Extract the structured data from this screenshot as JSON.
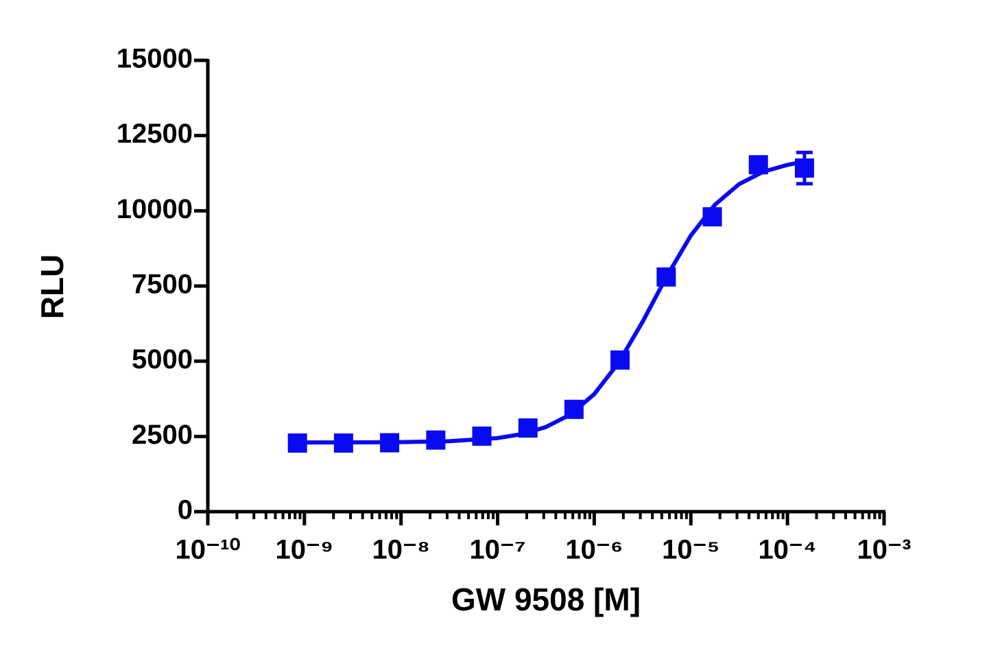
{
  "chart_data": {
    "type": "scatter",
    "x_label": "GW 9508 [M]",
    "y_label": "RLU",
    "xscale": "log",
    "xlim": [
      1e-10,
      0.001
    ],
    "ylim": [
      0,
      15000
    ],
    "xticks": [
      {
        "value": 1e-10,
        "label": "10⁻¹⁰"
      },
      {
        "value": 1e-09,
        "label": "10⁻⁹"
      },
      {
        "value": 1e-08,
        "label": "10⁻⁸"
      },
      {
        "value": 1e-07,
        "label": "10⁻⁷"
      },
      {
        "value": 1e-06,
        "label": "10⁻⁶"
      },
      {
        "value": 1e-05,
        "label": "10⁻⁵"
      },
      {
        "value": 0.0001,
        "label": "10⁻⁴"
      },
      {
        "value": 0.001,
        "label": "10⁻³"
      }
    ],
    "xminorticks": [
      2e-10,
      3e-10,
      4e-10,
      5e-10,
      6e-10,
      7e-10,
      8e-10,
      9e-10,
      2e-09,
      3e-09,
      4e-09,
      5e-09,
      6e-09,
      7e-09,
      8e-09,
      9e-09,
      2e-08,
      3e-08,
      4e-08,
      5e-08,
      6e-08,
      7e-08,
      8e-08,
      9e-08,
      2e-07,
      3e-07,
      4e-07,
      5e-07,
      6e-07,
      7e-07,
      8e-07,
      9e-07,
      2e-06,
      3e-06,
      4e-06,
      5e-06,
      6e-06,
      7e-06,
      8e-06,
      9e-06,
      2e-05,
      3e-05,
      4e-05,
      5e-05,
      6e-05,
      7e-05,
      8e-05,
      9e-05,
      0.0002,
      0.0003,
      0.0004,
      0.0005,
      0.0006,
      0.0007,
      0.0008,
      0.0009
    ],
    "yticks": [
      0,
      2500,
      5000,
      7500,
      10000,
      12500,
      15000
    ],
    "series": [
      {
        "style": "markers",
        "color": "#0a0af0",
        "x": [
          8.47e-10,
          2.54e-09,
          7.62e-09,
          2.29e-08,
          6.86e-08,
          2.06e-07,
          6.17e-07,
          1.85e-06,
          5.56e-06,
          1.667e-05,
          5e-05,
          0.00015
        ],
        "values": [
          2280,
          2280,
          2290,
          2380,
          2510,
          2780,
          3400,
          5040,
          7800,
          9800,
          11530,
          11420
        ],
        "errors": [
          null,
          null,
          null,
          null,
          null,
          null,
          null,
          null,
          null,
          null,
          null,
          520
        ]
      },
      {
        "style": "line",
        "color": "#0a0af0",
        "x": [
          8.47e-10,
          1e-09,
          3.162e-09,
          1e-08,
          3.162e-08,
          1e-07,
          1.778e-07,
          3.162e-07,
          5.623e-07,
          1e-06,
          1.778e-06,
          3.162e-06,
          5.623e-06,
          1e-05,
          1.778e-05,
          3.162e-05,
          5.623e-05,
          0.0001,
          0.00015
        ],
        "values": [
          2301,
          2301,
          2303,
          2312,
          2342,
          2447,
          2576,
          2813,
          3222,
          3906,
          4941,
          6309,
          7820,
          9178,
          10204,
          10888,
          11297,
          11525,
          11640
        ]
      }
    ]
  }
}
